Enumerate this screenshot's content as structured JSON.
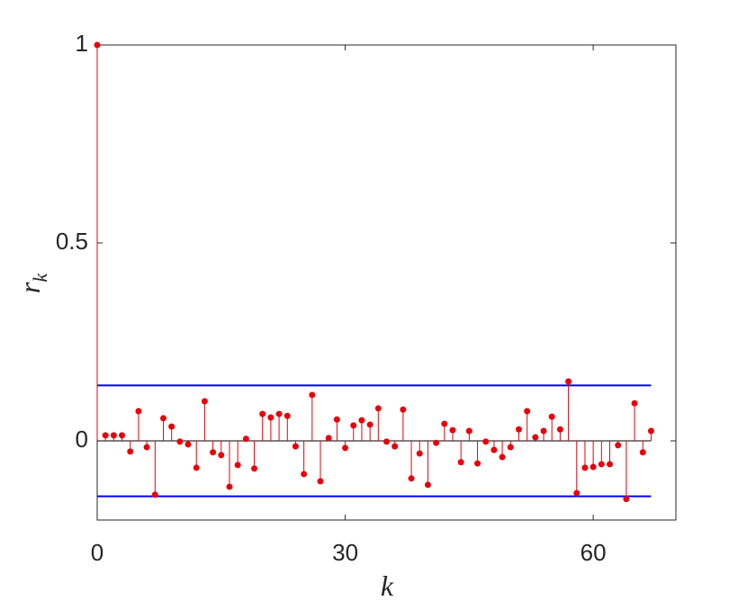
{
  "chart_data": {
    "type": "stem",
    "xlabel": "k",
    "ylabel": {
      "base": "r",
      "sub": "k"
    },
    "x": [
      0,
      1,
      2,
      3,
      4,
      5,
      6,
      7,
      8,
      9,
      10,
      11,
      12,
      13,
      14,
      15,
      16,
      17,
      18,
      19,
      20,
      21,
      22,
      23,
      24,
      25,
      26,
      27,
      28,
      29,
      30,
      31,
      32,
      33,
      34,
      35,
      36,
      37,
      38,
      39,
      40,
      41,
      42,
      43,
      44,
      45,
      46,
      47,
      48,
      49,
      50,
      51,
      52,
      53,
      54,
      55,
      56,
      57,
      58,
      59,
      60,
      61,
      62,
      63,
      64,
      65,
      66,
      67
    ],
    "values": [
      1,
      0.014,
      0.014,
      0.014,
      -0.027,
      0.075,
      -0.016,
      -0.136,
      0.057,
      0.036,
      -0.002,
      -0.009,
      -0.068,
      0.1,
      -0.029,
      -0.036,
      -0.116,
      -0.061,
      0.005,
      -0.07,
      0.068,
      0.059,
      0.068,
      0.063,
      -0.014,
      -0.084,
      0.116,
      -0.102,
      0.007,
      0.054,
      -0.018,
      0.039,
      0.052,
      0.041,
      0.082,
      -0.002,
      -0.014,
      0.079,
      -0.095,
      -0.032,
      -0.111,
      -0.005,
      0.043,
      0.027,
      -0.054,
      0.025,
      -0.057,
      -0.002,
      -0.023,
      -0.041,
      -0.016,
      0.029,
      0.075,
      0.009,
      0.025,
      0.061,
      0.029,
      0.15,
      -0.132,
      -0.068,
      -0.066,
      -0.059,
      -0.059,
      -0.011,
      -0.147,
      0.095,
      -0.029,
      0.025
    ],
    "color": "#e8000b",
    "bounds": {
      "values": [
        0.14,
        -0.14
      ],
      "color": "#0000ff"
    },
    "xlim": [
      0,
      70
    ],
    "ylim": [
      -0.2,
      1
    ],
    "xticks": [
      0,
      30,
      60
    ],
    "yticks": [
      0,
      0.5,
      1
    ]
  }
}
